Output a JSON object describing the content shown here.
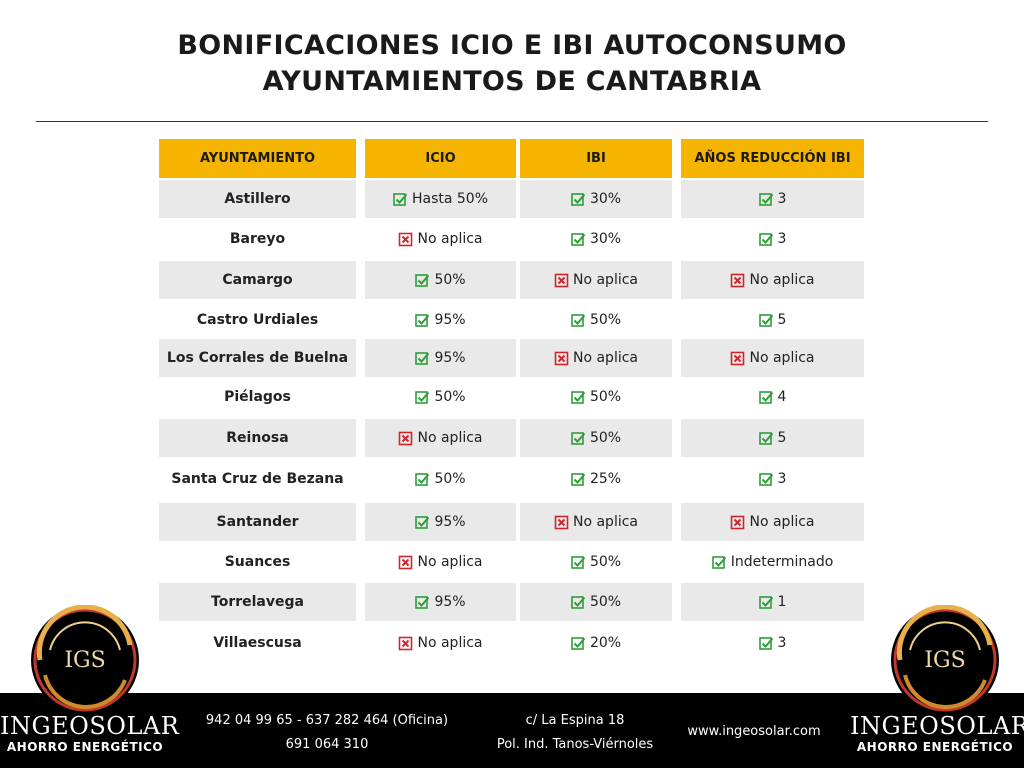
{
  "title": {
    "line1": "BONIFICACIONES ICIO E IBI AUTOCONSUMO",
    "line2": "AYUNTAMIENTOS DE CANTABRIA"
  },
  "table": {
    "headers": [
      "AYUNTAMIENTO",
      "ICIO",
      "IBI",
      "AÑOS REDUCCIÓN IBI"
    ],
    "rows": [
      {
        "town": "Astillero",
        "icio": {
          "text": "Hasta 50%",
          "ok": true
        },
        "ibi": {
          "text": "30%",
          "ok": true
        },
        "years": {
          "text": "3",
          "ok": true
        }
      },
      {
        "town": "Bareyo",
        "icio": {
          "text": "No aplica",
          "ok": false
        },
        "ibi": {
          "text": "30%",
          "ok": true
        },
        "years": {
          "text": "3",
          "ok": true
        }
      },
      {
        "town": "Camargo",
        "icio": {
          "text": "50%",
          "ok": true
        },
        "ibi": {
          "text": "No aplica",
          "ok": false
        },
        "years": {
          "text": "No aplica",
          "ok": false
        }
      },
      {
        "town": "Castro Urdiales",
        "icio": {
          "text": "95%",
          "ok": true
        },
        "ibi": {
          "text": "50%",
          "ok": true
        },
        "years": {
          "text": "5",
          "ok": true
        }
      },
      {
        "town": "Los Corrales de Buelna",
        "icio": {
          "text": "95%",
          "ok": true
        },
        "ibi": {
          "text": "No aplica",
          "ok": false
        },
        "years": {
          "text": "No aplica",
          "ok": false
        }
      },
      {
        "town": "Piélagos",
        "icio": {
          "text": "50%",
          "ok": true
        },
        "ibi": {
          "text": "50%",
          "ok": true
        },
        "years": {
          "text": "4",
          "ok": true
        }
      },
      {
        "town": "Reinosa",
        "icio": {
          "text": "No aplica",
          "ok": false
        },
        "ibi": {
          "text": "50%",
          "ok": true
        },
        "years": {
          "text": "5",
          "ok": true
        }
      },
      {
        "town": "Santa Cruz de Bezana",
        "icio": {
          "text": "50%",
          "ok": true
        },
        "ibi": {
          "text": "25%",
          "ok": true
        },
        "years": {
          "text": "3",
          "ok": true
        }
      },
      {
        "town": "Santander",
        "icio": {
          "text": "95%",
          "ok": true
        },
        "ibi": {
          "text": "No aplica",
          "ok": false
        },
        "years": {
          "text": "No aplica",
          "ok": false
        }
      },
      {
        "town": "Suances",
        "icio": {
          "text": "No aplica",
          "ok": false
        },
        "ibi": {
          "text": "50%",
          "ok": true
        },
        "years": {
          "text": "Indeterminado",
          "ok": true
        }
      },
      {
        "town": "Torrelavega",
        "icio": {
          "text": "95%",
          "ok": true
        },
        "ibi": {
          "text": "50%",
          "ok": true
        },
        "years": {
          "text": "1",
          "ok": true
        }
      },
      {
        "town": "Villaescusa",
        "icio": {
          "text": "No aplica",
          "ok": false
        },
        "ibi": {
          "text": "20%",
          "ok": true
        },
        "years": {
          "text": "3",
          "ok": true
        }
      }
    ]
  },
  "icons": {
    "ok": "check-box-icon",
    "no": "cross-box-icon"
  },
  "colors": {
    "header": "#f4b400",
    "ok": "#2e9e3a",
    "no": "#d0262d",
    "shade": "#e9e9e9"
  },
  "footer": {
    "phones": "942 04 99 65 - 637 282 464 (Oficina)",
    "phone2": "691 064 310",
    "address1": "c/ La Espina 18",
    "address2": "Pol. Ind. Tanos-Viérnoles",
    "web": "www.ingeosolar.com"
  },
  "brand": {
    "mark": "IGS",
    "name": "INGEOSOLAR",
    "tagline": "AHORRO ENERGÉTICO"
  }
}
